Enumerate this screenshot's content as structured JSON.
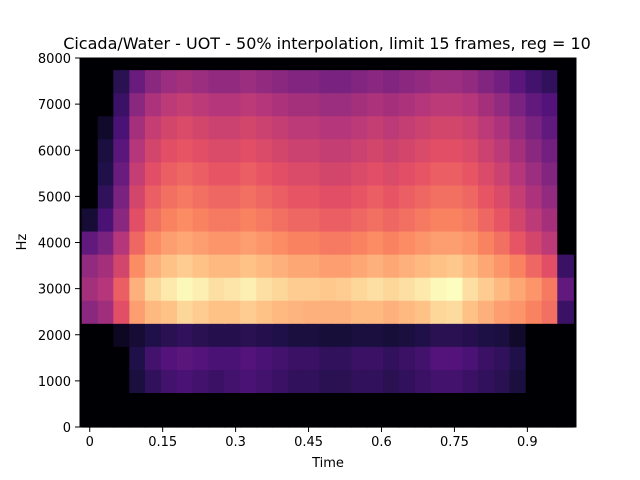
{
  "chart_data": {
    "type": "heatmap",
    "title": "Cicada/Water - UOT - 50% interpolation, limit 15 frames, reg = 10",
    "xlabel": "Time",
    "ylabel": "Hz",
    "xlim": [
      -0.02,
      1.0
    ],
    "ylim": [
      0,
      8000
    ],
    "x_ticks": [
      0,
      0.15,
      0.3,
      0.45,
      0.6,
      0.75,
      0.9
    ],
    "x_tick_labels": [
      "0",
      "0.15",
      "0.3",
      "0.45",
      "0.6",
      "0.75",
      "0.9"
    ],
    "y_ticks": [
      0,
      1000,
      2000,
      3000,
      4000,
      5000,
      6000,
      7000,
      8000
    ],
    "y_tick_labels": [
      "0",
      "1000",
      "2000",
      "3000",
      "4000",
      "5000",
      "6000",
      "7000",
      "8000"
    ],
    "colormap": "magma",
    "grid": false,
    "frame_times": [
      0.0,
      0.033,
      0.065,
      0.098,
      0.13,
      0.163,
      0.196,
      0.228,
      0.261,
      0.293,
      0.326,
      0.359,
      0.391,
      0.424,
      0.456,
      0.489,
      0.522,
      0.554,
      0.587,
      0.62,
      0.652,
      0.685,
      0.717,
      0.75,
      0.783,
      0.815,
      0.848,
      0.88,
      0.913,
      0.946,
      0.978
    ],
    "freq_bins_hz": [
      0,
      500,
      1000,
      1500,
      2000,
      2500,
      3000,
      3500,
      4000,
      4500,
      5000,
      5500,
      6000,
      6500,
      7000,
      7500,
      8000
    ],
    "intensity": [
      [
        0.0,
        0.0,
        0.0,
        0.0,
        0.0,
        0.0,
        0.0,
        0.0,
        0.0,
        0.0,
        0.0,
        0.0,
        0.0,
        0.0,
        0.0,
        0.0,
        0.0,
        0.0,
        0.0,
        0.0,
        0.0,
        0.0,
        0.0,
        0.0,
        0.0,
        0.0,
        0.0,
        0.0,
        0.0,
        0.0,
        0.0
      ],
      [
        0.0,
        0.0,
        0.0,
        0.0,
        0.0,
        0.0,
        0.0,
        0.0,
        0.0,
        0.0,
        0.0,
        0.0,
        0.0,
        0.0,
        0.0,
        0.0,
        0.0,
        0.0,
        0.0,
        0.0,
        0.0,
        0.0,
        0.0,
        0.0,
        0.0,
        0.0,
        0.0,
        0.0,
        0.0,
        0.0,
        0.0
      ],
      [
        0.0,
        0.0,
        0.0,
        0.12,
        0.18,
        0.22,
        0.24,
        0.22,
        0.2,
        0.22,
        0.24,
        0.22,
        0.2,
        0.18,
        0.18,
        0.16,
        0.16,
        0.18,
        0.18,
        0.16,
        0.18,
        0.2,
        0.22,
        0.22,
        0.2,
        0.18,
        0.16,
        0.12,
        0.0,
        0.0,
        0.0
      ],
      [
        0.0,
        0.0,
        0.0,
        0.14,
        0.22,
        0.26,
        0.28,
        0.26,
        0.24,
        0.24,
        0.26,
        0.24,
        0.22,
        0.2,
        0.2,
        0.18,
        0.18,
        0.2,
        0.2,
        0.18,
        0.2,
        0.22,
        0.26,
        0.26,
        0.24,
        0.2,
        0.18,
        0.14,
        0.0,
        0.0,
        0.0
      ],
      [
        0.0,
        0.0,
        0.06,
        0.1,
        0.14,
        0.16,
        0.18,
        0.16,
        0.15,
        0.15,
        0.16,
        0.15,
        0.14,
        0.12,
        0.12,
        0.11,
        0.11,
        0.12,
        0.12,
        0.11,
        0.12,
        0.14,
        0.16,
        0.16,
        0.15,
        0.13,
        0.12,
        0.08,
        0.0,
        0.0,
        0.0
      ],
      [
        0.4,
        0.45,
        0.62,
        0.8,
        0.86,
        0.88,
        0.92,
        0.9,
        0.88,
        0.88,
        0.9,
        0.88,
        0.86,
        0.85,
        0.84,
        0.84,
        0.84,
        0.86,
        0.86,
        0.84,
        0.86,
        0.88,
        0.92,
        0.93,
        0.88,
        0.84,
        0.8,
        0.78,
        0.74,
        0.7,
        0.2
      ],
      [
        0.46,
        0.5,
        0.66,
        0.84,
        0.92,
        0.96,
        0.99,
        0.97,
        0.94,
        0.95,
        0.97,
        0.94,
        0.92,
        0.9,
        0.9,
        0.89,
        0.9,
        0.92,
        0.94,
        0.92,
        0.94,
        0.96,
        0.99,
        1.0,
        0.94,
        0.9,
        0.86,
        0.82,
        0.78,
        0.72,
        0.3
      ],
      [
        0.42,
        0.46,
        0.58,
        0.76,
        0.84,
        0.88,
        0.9,
        0.88,
        0.86,
        0.86,
        0.88,
        0.86,
        0.84,
        0.82,
        0.82,
        0.8,
        0.8,
        0.82,
        0.84,
        0.82,
        0.84,
        0.86,
        0.88,
        0.89,
        0.86,
        0.82,
        0.78,
        0.74,
        0.68,
        0.62,
        0.2
      ],
      [
        0.3,
        0.36,
        0.5,
        0.68,
        0.76,
        0.8,
        0.82,
        0.8,
        0.78,
        0.78,
        0.8,
        0.78,
        0.76,
        0.74,
        0.74,
        0.72,
        0.72,
        0.74,
        0.76,
        0.74,
        0.76,
        0.78,
        0.8,
        0.8,
        0.78,
        0.74,
        0.7,
        0.64,
        0.58,
        0.52,
        0.0
      ],
      [
        0.1,
        0.24,
        0.4,
        0.62,
        0.7,
        0.74,
        0.76,
        0.74,
        0.72,
        0.72,
        0.74,
        0.72,
        0.7,
        0.68,
        0.68,
        0.66,
        0.66,
        0.68,
        0.7,
        0.68,
        0.7,
        0.72,
        0.74,
        0.74,
        0.72,
        0.68,
        0.64,
        0.58,
        0.52,
        0.46,
        0.0
      ],
      [
        0.0,
        0.18,
        0.36,
        0.58,
        0.66,
        0.7,
        0.72,
        0.7,
        0.68,
        0.68,
        0.7,
        0.68,
        0.66,
        0.64,
        0.64,
        0.62,
        0.62,
        0.64,
        0.66,
        0.64,
        0.66,
        0.68,
        0.7,
        0.7,
        0.68,
        0.64,
        0.6,
        0.54,
        0.48,
        0.42,
        0.0
      ],
      [
        0.0,
        0.14,
        0.32,
        0.54,
        0.62,
        0.66,
        0.68,
        0.66,
        0.64,
        0.64,
        0.66,
        0.64,
        0.62,
        0.6,
        0.6,
        0.58,
        0.58,
        0.6,
        0.62,
        0.6,
        0.62,
        0.64,
        0.66,
        0.66,
        0.64,
        0.6,
        0.56,
        0.5,
        0.44,
        0.38,
        0.0
      ],
      [
        0.0,
        0.12,
        0.28,
        0.5,
        0.58,
        0.62,
        0.64,
        0.62,
        0.6,
        0.6,
        0.62,
        0.6,
        0.58,
        0.56,
        0.56,
        0.54,
        0.54,
        0.56,
        0.58,
        0.56,
        0.58,
        0.6,
        0.62,
        0.62,
        0.6,
        0.56,
        0.52,
        0.46,
        0.4,
        0.34,
        0.0
      ],
      [
        0.0,
        0.08,
        0.24,
        0.46,
        0.54,
        0.58,
        0.6,
        0.58,
        0.56,
        0.56,
        0.58,
        0.56,
        0.54,
        0.52,
        0.52,
        0.5,
        0.5,
        0.52,
        0.54,
        0.52,
        0.54,
        0.56,
        0.58,
        0.58,
        0.56,
        0.52,
        0.48,
        0.42,
        0.36,
        0.3,
        0.0
      ],
      [
        0.0,
        0.0,
        0.2,
        0.4,
        0.48,
        0.52,
        0.54,
        0.52,
        0.5,
        0.5,
        0.52,
        0.5,
        0.48,
        0.46,
        0.46,
        0.44,
        0.44,
        0.46,
        0.48,
        0.46,
        0.48,
        0.5,
        0.52,
        0.52,
        0.5,
        0.46,
        0.42,
        0.36,
        0.3,
        0.26,
        0.0
      ],
      [
        0.0,
        0.0,
        0.16,
        0.32,
        0.4,
        0.44,
        0.46,
        0.44,
        0.42,
        0.42,
        0.44,
        0.42,
        0.4,
        0.38,
        0.38,
        0.36,
        0.36,
        0.38,
        0.4,
        0.38,
        0.4,
        0.42,
        0.44,
        0.44,
        0.42,
        0.38,
        0.34,
        0.28,
        0.22,
        0.18,
        0.0
      ],
      [
        0.0,
        0.0,
        0.0,
        0.0,
        0.0,
        0.0,
        0.0,
        0.0,
        0.0,
        0.0,
        0.0,
        0.0,
        0.0,
        0.0,
        0.0,
        0.0,
        0.0,
        0.0,
        0.0,
        0.0,
        0.0,
        0.0,
        0.0,
        0.0,
        0.0,
        0.0,
        0.0,
        0.0,
        0.0,
        0.0,
        0.0
      ]
    ]
  }
}
